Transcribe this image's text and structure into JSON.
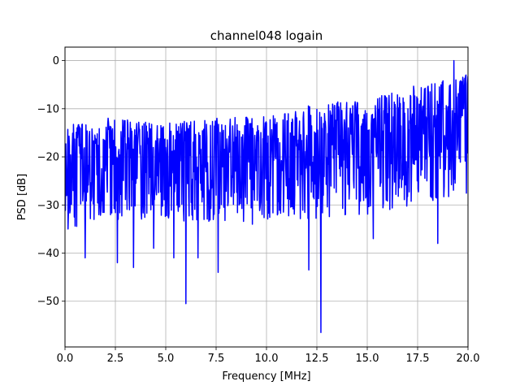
{
  "chart_data": {
    "type": "line",
    "title": "channel048 logain",
    "xlabel": "Frequency [MHz]",
    "ylabel": "PSD [dB]",
    "xlim": [
      0,
      20
    ],
    "ylim": [
      -59.5,
      2.8
    ],
    "grid": true,
    "x_ticks": [
      0,
      2.5,
      5,
      7.5,
      10,
      12.5,
      15,
      17.5,
      20
    ],
    "x_tick_labels": [
      "0.0",
      "2.5",
      "5.0",
      "7.5",
      "10.0",
      "12.5",
      "15.0",
      "17.5",
      "20.0"
    ],
    "y_ticks": [
      0,
      -10,
      -20,
      -30,
      -40,
      -50
    ],
    "y_tick_labels": [
      "0",
      "−10",
      "−20",
      "−30",
      "−40",
      "−50"
    ],
    "series": [
      {
        "color": "#0000ff",
        "trend": {
          "x": [
            0,
            2.5,
            5,
            7.5,
            10,
            12.5,
            15,
            17.5,
            20
          ],
          "y": [
            -21,
            -21,
            -20.5,
            -20,
            -19.5,
            -19,
            -18,
            -16,
            -14
          ]
        },
        "upper_envelope": {
          "x": [
            0,
            2.5,
            5,
            7.5,
            10,
            12.5,
            15,
            17.5,
            20
          ],
          "y": [
            -11,
            -12,
            -13,
            -12,
            -11.5,
            -9,
            -8,
            -5,
            -3
          ]
        },
        "lower_envelope": {
          "x": [
            0,
            2.5,
            5,
            7.5,
            10,
            12.5,
            15,
            17.5,
            20
          ],
          "y": [
            -35,
            -33,
            -33,
            -34,
            -33,
            -33,
            -32,
            -30,
            -28
          ]
        },
        "notable_points": [
          {
            "x": 0.15,
            "y": -35
          },
          {
            "x": 1.0,
            "y": -41
          },
          {
            "x": 2.6,
            "y": -42
          },
          {
            "x": 3.4,
            "y": -43
          },
          {
            "x": 4.4,
            "y": -39
          },
          {
            "x": 5.4,
            "y": -41
          },
          {
            "x": 6.0,
            "y": -50.5
          },
          {
            "x": 6.6,
            "y": -41
          },
          {
            "x": 7.6,
            "y": -44
          },
          {
            "x": 9.3,
            "y": -34
          },
          {
            "x": 12.1,
            "y": -43.5
          },
          {
            "x": 12.7,
            "y": -56.5
          },
          {
            "x": 15.3,
            "y": -37
          },
          {
            "x": 18.5,
            "y": -38
          },
          {
            "x": 19.3,
            "y": 0
          },
          {
            "x": 19.9,
            "y": -3
          }
        ]
      }
    ]
  }
}
